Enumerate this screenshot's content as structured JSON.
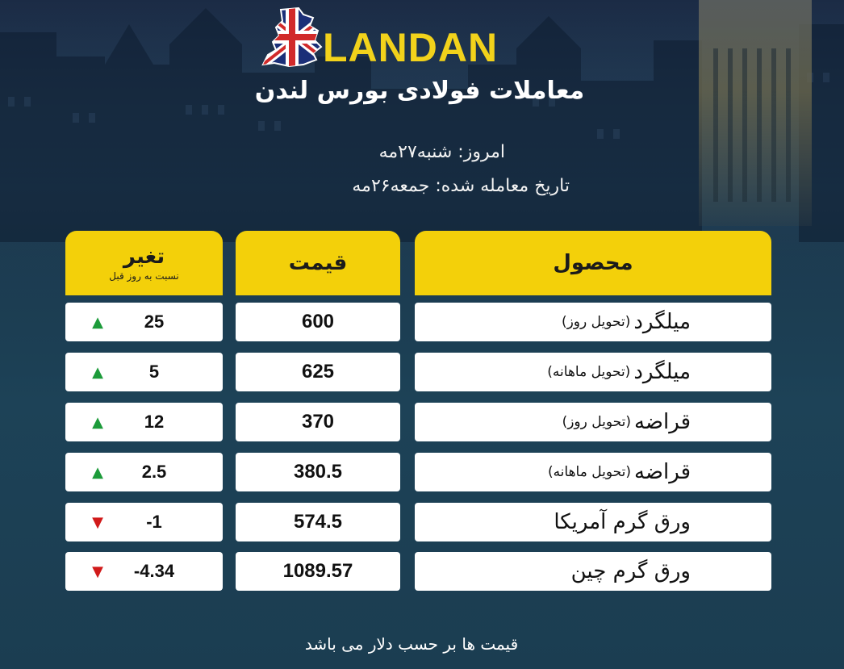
{
  "header": {
    "brand": "LANDAN",
    "subtitle": "معاملات فولادی بورس لندن",
    "today": "امروز: شنبه۲۷مه",
    "trade_date": "تاریخ معامله شده: جمعه۲۶مه"
  },
  "table": {
    "columns": {
      "product": "محصول",
      "price": "قیمت",
      "change": "تغیر",
      "change_sub": "نسبت به روز قبل"
    },
    "rows": [
      {
        "name": "میلگرد",
        "note": "(تحویل روز)",
        "price": "600",
        "change": "25",
        "direction": "up"
      },
      {
        "name": "میلگرد",
        "note": "(تحویل ماهانه)",
        "price": "625",
        "change": "5",
        "direction": "up"
      },
      {
        "name": "قراضه",
        "note": "(تحویل روز)",
        "price": "370",
        "change": "12",
        "direction": "up"
      },
      {
        "name": "قراضه",
        "note": "(تحویل ماهانه)",
        "price": "380.5",
        "change": "2.5",
        "direction": "up"
      },
      {
        "name": "ورق گرم آمریکا",
        "note": "",
        "price": "574.5",
        "change": "-1",
        "direction": "down"
      },
      {
        "name": "ورق گرم چین",
        "note": "",
        "price": "1089.57",
        "change": "-4.34",
        "direction": "down"
      }
    ]
  },
  "footer": "قیمت ها بر حسب دلار می باشد",
  "colors": {
    "accent": "#f3d00a",
    "up": "#1c9b3a",
    "down": "#d11a1a"
  }
}
